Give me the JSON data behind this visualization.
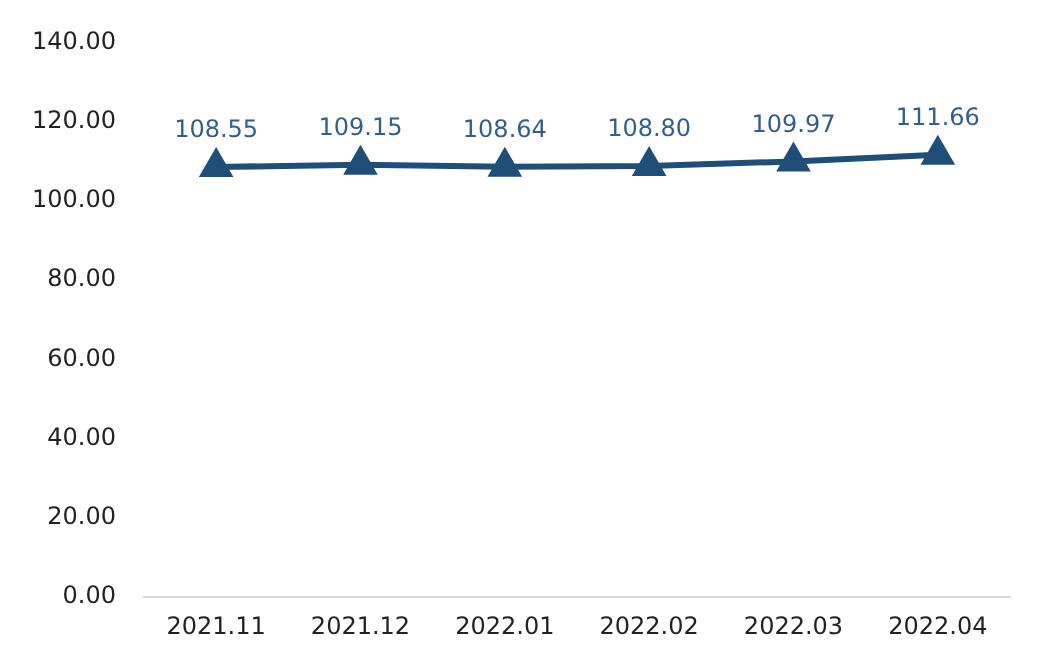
{
  "chart_data": {
    "type": "line",
    "categories": [
      "2021.11",
      "2021.12",
      "2022.01",
      "2022.02",
      "2022.03",
      "2022.04"
    ],
    "series": [
      {
        "color": "#1f4e79",
        "values": [
          108.55,
          109.15,
          108.64,
          108.8,
          109.97,
          111.66
        ],
        "value_labels": [
          "108.55",
          "109.15",
          "108.64",
          "108.80",
          "109.97",
          "111.66"
        ]
      }
    ],
    "ylim": [
      0,
      140
    ],
    "yticks": [
      {
        "value": 0,
        "label": "0.00"
      },
      {
        "value": 20,
        "label": "20.00"
      },
      {
        "value": 40,
        "label": "40.00"
      },
      {
        "value": 60,
        "label": "60.00"
      },
      {
        "value": 80,
        "label": "80.00"
      },
      {
        "value": 100,
        "label": "100.00"
      },
      {
        "value": 120,
        "label": "120.00"
      },
      {
        "value": 140,
        "label": "140.00"
      }
    ],
    "grid": false,
    "legend": false,
    "marker": "triangle",
    "line_style": "solid"
  }
}
